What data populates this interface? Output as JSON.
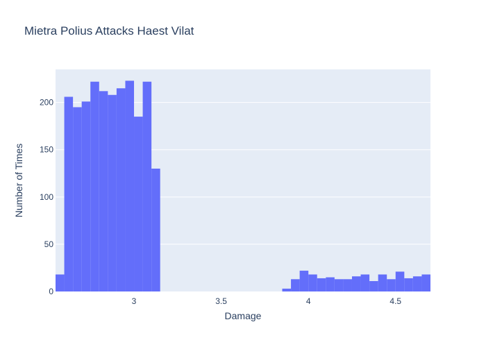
{
  "chart_data": {
    "type": "bar",
    "title": "Mietra Polius Attacks Haest Vilat",
    "xlabel": "Damage",
    "ylabel": "Number of Times",
    "xlim": [
      2.55,
      4.7
    ],
    "ylim": [
      0,
      235
    ],
    "bin_width": 0.05,
    "x_ticks": [
      3,
      3.5,
      4,
      4.5
    ],
    "x_tick_labels": [
      "3",
      "3.5",
      "4",
      "4.5"
    ],
    "y_ticks": [
      0,
      50,
      100,
      150,
      200
    ],
    "y_tick_labels": [
      "0",
      "50",
      "100",
      "150",
      "200"
    ],
    "grid": true,
    "bar_color": "#636efa",
    "plot_bg": "#e5ecf6",
    "bins": [
      {
        "x0": 2.55,
        "x1": 2.6,
        "count": 18
      },
      {
        "x0": 2.6,
        "x1": 2.65,
        "count": 206
      },
      {
        "x0": 2.65,
        "x1": 2.7,
        "count": 195
      },
      {
        "x0": 2.7,
        "x1": 2.75,
        "count": 201
      },
      {
        "x0": 2.75,
        "x1": 2.8,
        "count": 222
      },
      {
        "x0": 2.8,
        "x1": 2.85,
        "count": 212
      },
      {
        "x0": 2.85,
        "x1": 2.9,
        "count": 208
      },
      {
        "x0": 2.9,
        "x1": 2.95,
        "count": 215
      },
      {
        "x0": 2.95,
        "x1": 3.0,
        "count": 223
      },
      {
        "x0": 3.0,
        "x1": 3.05,
        "count": 185
      },
      {
        "x0": 3.05,
        "x1": 3.1,
        "count": 222
      },
      {
        "x0": 3.1,
        "x1": 3.15,
        "count": 130
      },
      {
        "x0": 3.85,
        "x1": 3.9,
        "count": 3
      },
      {
        "x0": 3.9,
        "x1": 3.95,
        "count": 13
      },
      {
        "x0": 3.95,
        "x1": 4.0,
        "count": 22
      },
      {
        "x0": 4.0,
        "x1": 4.05,
        "count": 18
      },
      {
        "x0": 4.05,
        "x1": 4.1,
        "count": 14
      },
      {
        "x0": 4.1,
        "x1": 4.15,
        "count": 15
      },
      {
        "x0": 4.15,
        "x1": 4.2,
        "count": 13
      },
      {
        "x0": 4.2,
        "x1": 4.25,
        "count": 13
      },
      {
        "x0": 4.25,
        "x1": 4.3,
        "count": 16
      },
      {
        "x0": 4.3,
        "x1": 4.35,
        "count": 18
      },
      {
        "x0": 4.35,
        "x1": 4.4,
        "count": 11
      },
      {
        "x0": 4.4,
        "x1": 4.45,
        "count": 18
      },
      {
        "x0": 4.45,
        "x1": 4.5,
        "count": 13
      },
      {
        "x0": 4.5,
        "x1": 4.55,
        "count": 21
      },
      {
        "x0": 4.55,
        "x1": 4.6,
        "count": 14
      },
      {
        "x0": 4.6,
        "x1": 4.65,
        "count": 16
      },
      {
        "x0": 4.65,
        "x1": 4.7,
        "count": 18
      }
    ]
  }
}
